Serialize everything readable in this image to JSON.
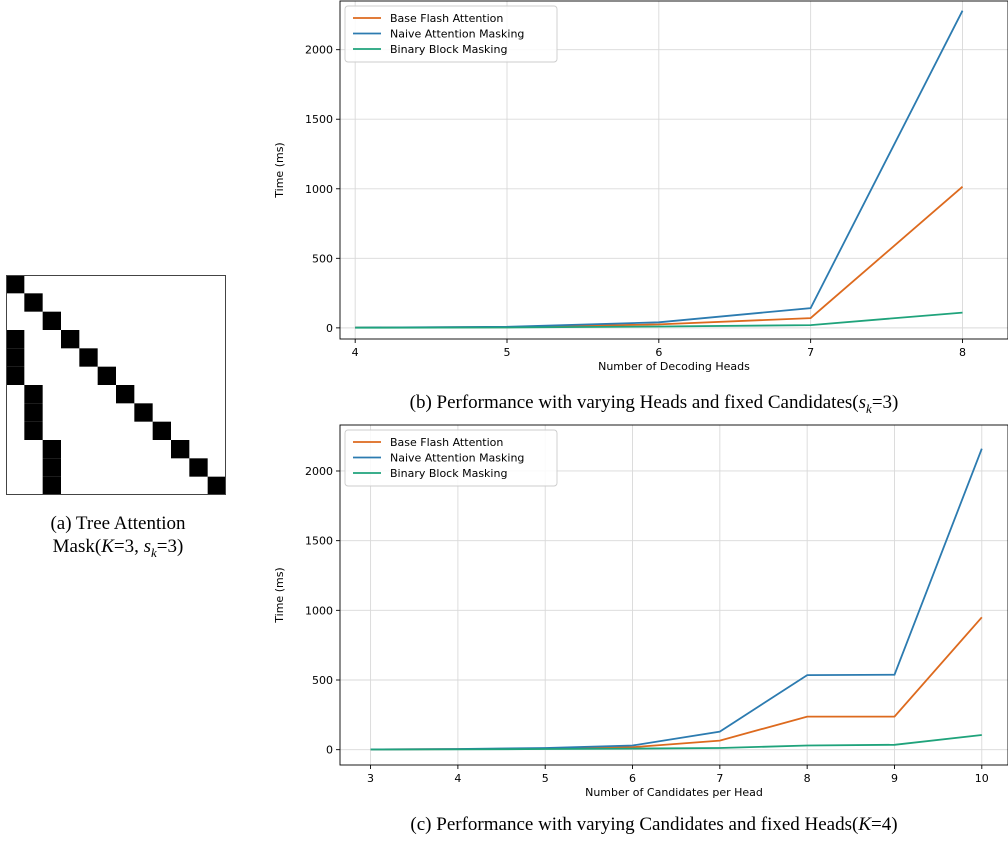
{
  "mask_figure": {
    "caption_line1": "(a) Tree Attention",
    "caption_line2_prefix": "Mask(",
    "caption_K": "K",
    "caption_K_val": "=3, ",
    "caption_s": "s",
    "caption_s_sub": "k",
    "caption_s_val": "=3)",
    "grid_size": 12,
    "filled_cells": [
      [
        0,
        0
      ],
      [
        1,
        1
      ],
      [
        2,
        2
      ],
      [
        3,
        3
      ],
      [
        4,
        4
      ],
      [
        5,
        5
      ],
      [
        6,
        6
      ],
      [
        7,
        7
      ],
      [
        8,
        8
      ],
      [
        9,
        9
      ],
      [
        10,
        10
      ],
      [
        11,
        11
      ],
      [
        3,
        0
      ],
      [
        4,
        0
      ],
      [
        5,
        0
      ],
      [
        6,
        1
      ],
      [
        7,
        1
      ],
      [
        8,
        1
      ],
      [
        9,
        2
      ],
      [
        10,
        2
      ],
      [
        11,
        2
      ]
    ]
  },
  "chart_b": {
    "caption_prefix": "(b) Performance with varying Heads and fixed Candidates(",
    "caption_s": "s",
    "caption_s_sub": "k",
    "caption_suffix": "=3)"
  },
  "chart_c": {
    "caption_prefix": "(c) Performance with varying Candidates and fixed Heads(",
    "caption_K": "K",
    "caption_suffix": "=4)"
  },
  "colors": {
    "base_flash": "#dd6a1e",
    "naive": "#2c7bb0",
    "binary": "#1fa37b",
    "grid": "#d9d9d9"
  },
  "chart_data": [
    {
      "type": "line",
      "title": "",
      "xlabel": "Number of Decoding Heads",
      "ylabel": "Time (ms)",
      "x": [
        4,
        5,
        6,
        7,
        8
      ],
      "xlim": [
        3.9,
        8.3
      ],
      "ylim": [
        -80,
        2350
      ],
      "xticks": [
        4,
        5,
        6,
        7,
        8
      ],
      "yticks": [
        0,
        500,
        1000,
        1500,
        2000
      ],
      "grid": true,
      "legend_position": "top-left",
      "series": [
        {
          "name": "Base Flash Attention",
          "color_key": "base_flash",
          "values": [
            2,
            5,
            25,
            70,
            1015
          ]
        },
        {
          "name": "Naive Attention Masking",
          "color_key": "naive",
          "values": [
            2,
            8,
            40,
            142,
            2280
          ]
        },
        {
          "name": "Binary Block Masking",
          "color_key": "binary",
          "values": [
            1,
            3,
            10,
            20,
            110
          ]
        }
      ]
    },
    {
      "type": "line",
      "title": "",
      "xlabel": "Number of Candidates per Head",
      "ylabel": "Time (ms)",
      "x": [
        3,
        4,
        5,
        6,
        7,
        8,
        9,
        10
      ],
      "xlim": [
        2.65,
        10.3
      ],
      "ylim": [
        -110,
        2330
      ],
      "xticks": [
        3,
        4,
        5,
        6,
        7,
        8,
        9,
        10
      ],
      "yticks": [
        0,
        500,
        1000,
        1500,
        2000
      ],
      "grid": true,
      "legend_position": "top-left",
      "series": [
        {
          "name": "Base Flash Attention",
          "color_key": "base_flash",
          "values": [
            2,
            4,
            8,
            18,
            65,
            237,
            237,
            950
          ]
        },
        {
          "name": "Naive Attention Masking",
          "color_key": "naive",
          "values": [
            2,
            5,
            12,
            30,
            130,
            535,
            538,
            2160
          ]
        },
        {
          "name": "Binary Block Masking",
          "color_key": "binary",
          "values": [
            1,
            2,
            5,
            8,
            12,
            30,
            35,
            105
          ]
        }
      ]
    }
  ]
}
